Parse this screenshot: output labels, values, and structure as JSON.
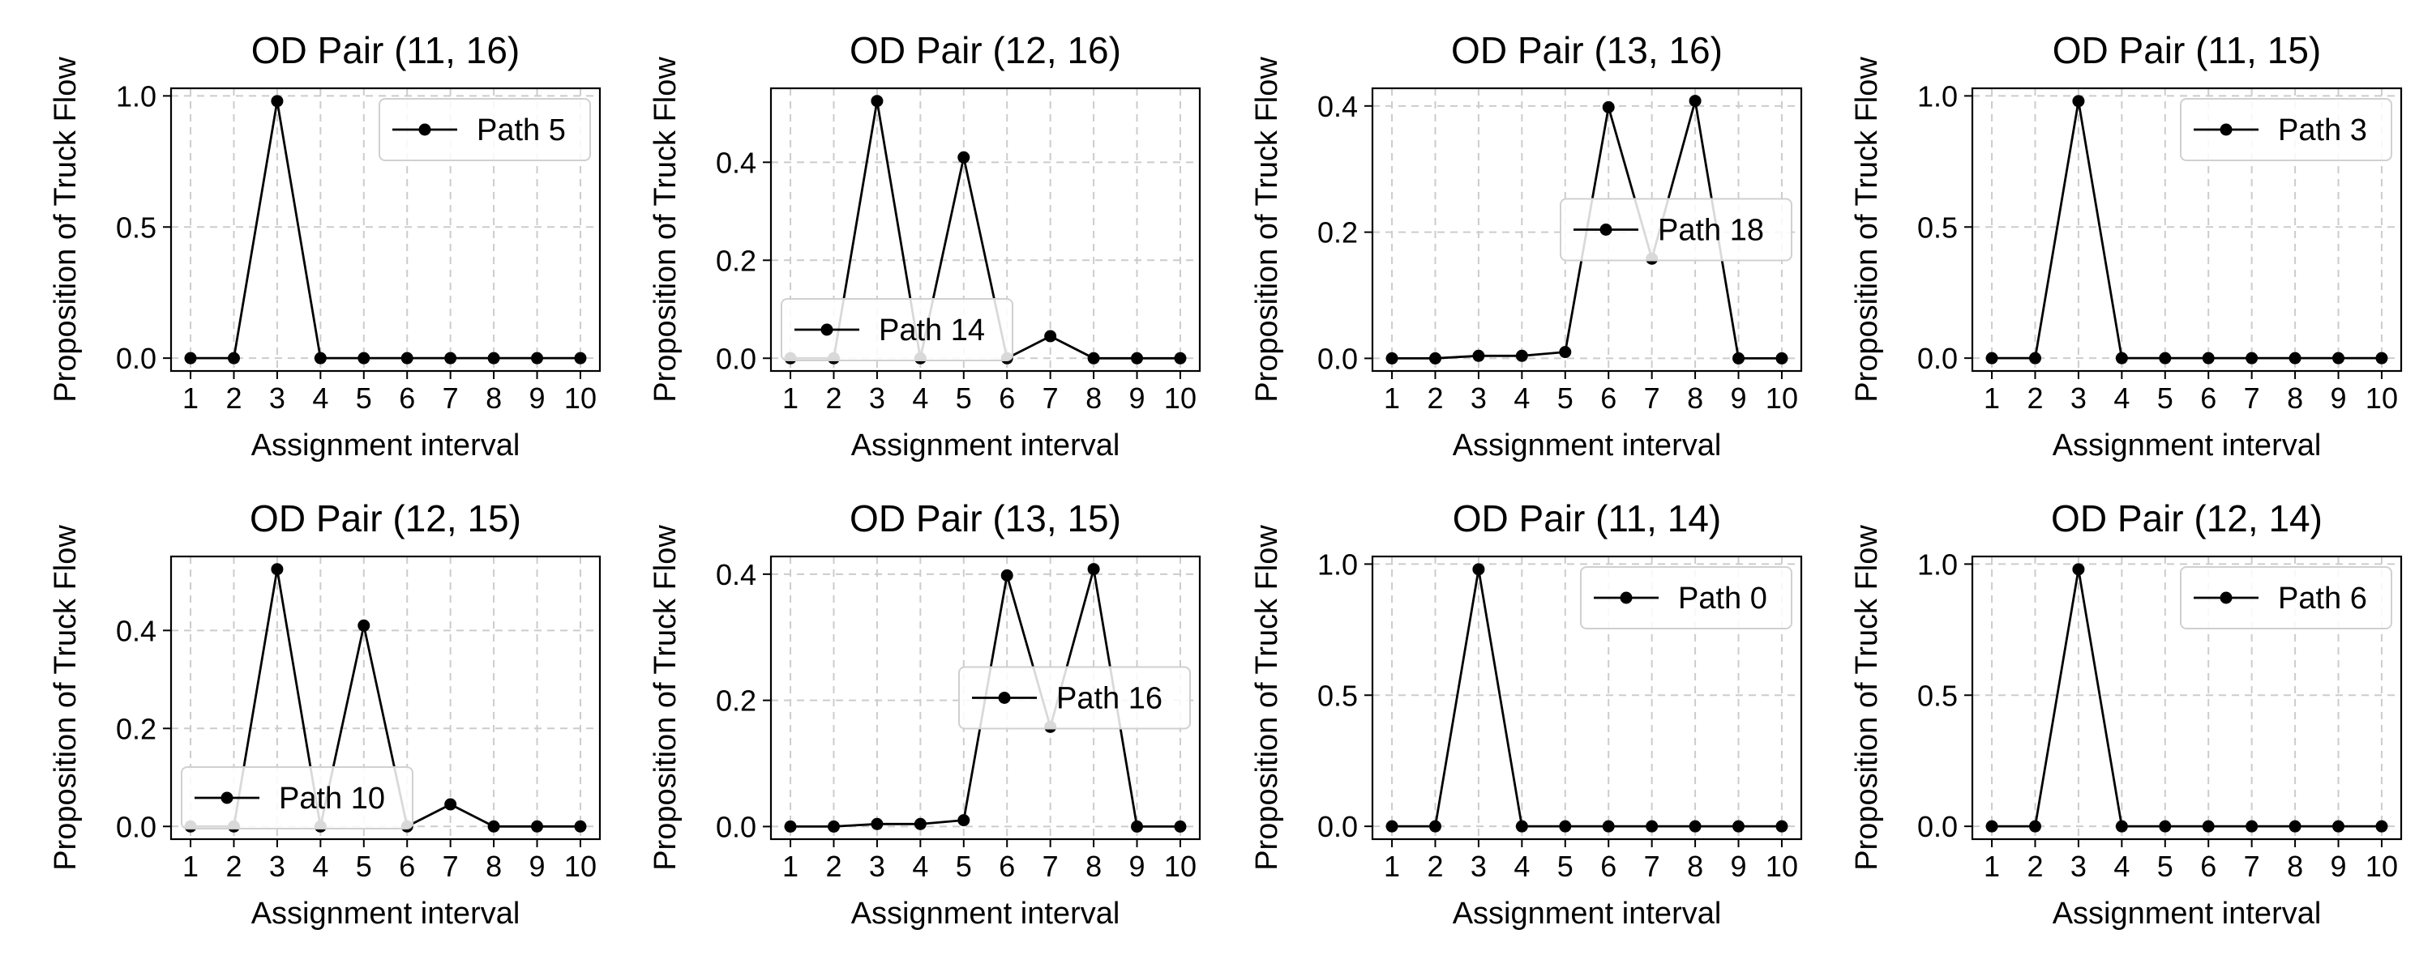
{
  "figure": {
    "shared": {
      "xlabel": "Assignment interval",
      "ylabel": "Proposition of Truck Flow",
      "x": [
        1,
        2,
        3,
        4,
        5,
        6,
        7,
        8,
        9,
        10
      ],
      "xticks": [
        "1",
        "2",
        "3",
        "4",
        "5",
        "6",
        "7",
        "8",
        "9",
        "10"
      ],
      "line_color": "#000000",
      "grid_color": "#cccccc"
    }
  },
  "chart_data": [
    {
      "type": "line",
      "title": "OD Pair (11, 16)",
      "xlabel": "Assignment interval",
      "ylabel": "Proposition of Truck Flow",
      "x": [
        1,
        2,
        3,
        4,
        5,
        6,
        7,
        8,
        9,
        10
      ],
      "series": [
        {
          "name": "Path 5",
          "values": [
            0,
            0,
            0.98,
            0,
            0,
            0,
            0,
            0,
            0,
            0
          ]
        }
      ],
      "ylim": [
        -0.049,
        1.029
      ],
      "yticks": [
        "0.0",
        "0.5",
        "1.0"
      ],
      "grid": true,
      "legend": "upper right"
    },
    {
      "type": "line",
      "title": "OD Pair (12, 16)",
      "xlabel": "Assignment interval",
      "ylabel": "Proposition of Truck Flow",
      "x": [
        1,
        2,
        3,
        4,
        5,
        6,
        7,
        8,
        9,
        10
      ],
      "series": [
        {
          "name": "Path 14",
          "values": [
            0,
            0,
            0.525,
            0,
            0.41,
            0,
            0.045,
            0,
            0,
            0
          ]
        }
      ],
      "ylim": [
        -0.026,
        0.551
      ],
      "yticks": [
        "0.0",
        "0.2",
        "0.4"
      ],
      "grid": true,
      "legend": "lower left"
    },
    {
      "type": "line",
      "title": "OD Pair (13, 16)",
      "xlabel": "Assignment interval",
      "ylabel": "Proposition of Truck Flow",
      "x": [
        1,
        2,
        3,
        4,
        5,
        6,
        7,
        8,
        9,
        10
      ],
      "series": [
        {
          "name": "Path 18",
          "values": [
            0,
            0,
            0.004,
            0.004,
            0.01,
            0.398,
            0.158,
            0.408,
            0,
            0
          ]
        }
      ],
      "ylim": [
        -0.02,
        0.428
      ],
      "yticks": [
        "0.0",
        "0.2",
        "0.4"
      ],
      "grid": true,
      "legend": "center right"
    },
    {
      "type": "line",
      "title": "OD Pair (11, 15)",
      "xlabel": "Assignment interval",
      "ylabel": "Proposition of Truck Flow",
      "x": [
        1,
        2,
        3,
        4,
        5,
        6,
        7,
        8,
        9,
        10
      ],
      "series": [
        {
          "name": "Path 3",
          "values": [
            0,
            0,
            0.98,
            0,
            0,
            0,
            0,
            0,
            0,
            0
          ]
        }
      ],
      "ylim": [
        -0.049,
        1.029
      ],
      "yticks": [
        "0.0",
        "0.5",
        "1.0"
      ],
      "grid": true,
      "legend": "upper right"
    },
    {
      "type": "line",
      "title": "OD Pair (12, 15)",
      "xlabel": "Assignment interval",
      "ylabel": "Proposition of Truck Flow",
      "x": [
        1,
        2,
        3,
        4,
        5,
        6,
        7,
        8,
        9,
        10
      ],
      "series": [
        {
          "name": "Path 10",
          "values": [
            0,
            0,
            0.525,
            0,
            0.41,
            0,
            0.045,
            0,
            0,
            0
          ]
        }
      ],
      "ylim": [
        -0.026,
        0.551
      ],
      "yticks": [
        "0.0",
        "0.2",
        "0.4"
      ],
      "grid": true,
      "legend": "lower left"
    },
    {
      "type": "line",
      "title": "OD Pair (13, 15)",
      "xlabel": "Assignment interval",
      "ylabel": "Proposition of Truck Flow",
      "x": [
        1,
        2,
        3,
        4,
        5,
        6,
        7,
        8,
        9,
        10
      ],
      "series": [
        {
          "name": "Path 16",
          "values": [
            0,
            0,
            0.004,
            0.004,
            0.01,
            0.398,
            0.158,
            0.408,
            0,
            0
          ]
        }
      ],
      "ylim": [
        -0.02,
        0.428
      ],
      "yticks": [
        "0.0",
        "0.2",
        "0.4"
      ],
      "grid": true,
      "legend": "center right"
    },
    {
      "type": "line",
      "title": "OD Pair (11, 14)",
      "xlabel": "Assignment interval",
      "ylabel": "Proposition of Truck Flow",
      "x": [
        1,
        2,
        3,
        4,
        5,
        6,
        7,
        8,
        9,
        10
      ],
      "series": [
        {
          "name": "Path 0",
          "values": [
            0,
            0,
            0.98,
            0,
            0,
            0,
            0,
            0,
            0,
            0
          ]
        }
      ],
      "ylim": [
        -0.049,
        1.029
      ],
      "yticks": [
        "0.0",
        "0.5",
        "1.0"
      ],
      "grid": true,
      "legend": "upper right"
    },
    {
      "type": "line",
      "title": "OD Pair (12, 14)",
      "xlabel": "Assignment interval",
      "ylabel": "Proposition of Truck Flow",
      "x": [
        1,
        2,
        3,
        4,
        5,
        6,
        7,
        8,
        9,
        10
      ],
      "series": [
        {
          "name": "Path 6",
          "values": [
            0,
            0,
            0.98,
            0,
            0,
            0,
            0,
            0,
            0,
            0
          ]
        }
      ],
      "ylim": [
        -0.049,
        1.029
      ],
      "yticks": [
        "0.0",
        "0.5",
        "1.0"
      ],
      "grid": true,
      "legend": "upper right"
    }
  ]
}
